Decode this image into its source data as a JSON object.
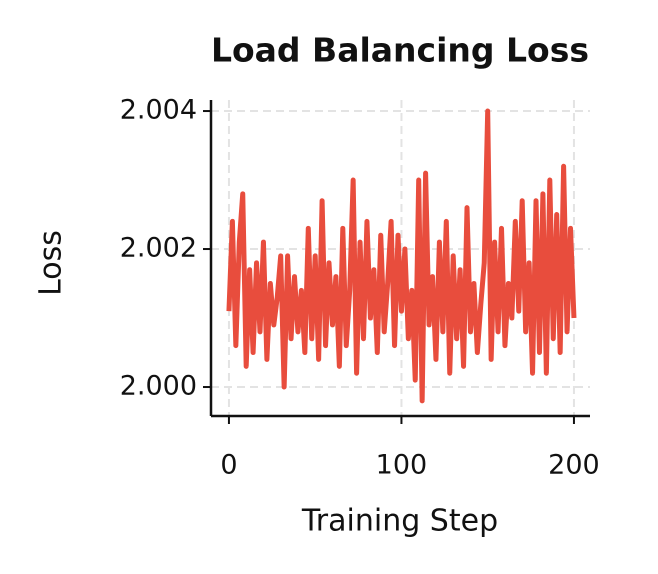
{
  "chart_data": {
    "type": "line",
    "title": "Load Balancing Loss",
    "x_label": "Training Step",
    "y_label": "Loss",
    "x": [
      0,
      2,
      4,
      6,
      8,
      10,
      12,
      14,
      16,
      18,
      20,
      22,
      24,
      26,
      28,
      30,
      32,
      34,
      36,
      38,
      40,
      42,
      44,
      46,
      48,
      50,
      52,
      54,
      56,
      58,
      60,
      62,
      64,
      66,
      68,
      70,
      72,
      74,
      76,
      78,
      80,
      82,
      84,
      86,
      88,
      90,
      92,
      94,
      96,
      98,
      100,
      102,
      104,
      106,
      108,
      110,
      112,
      114,
      116,
      118,
      120,
      122,
      124,
      126,
      128,
      130,
      132,
      134,
      136,
      138,
      140,
      142,
      144,
      146,
      148,
      150,
      152,
      154,
      156,
      158,
      160,
      162,
      164,
      166,
      168,
      170,
      172,
      174,
      176,
      178,
      180,
      182,
      184,
      186,
      188,
      190,
      192,
      194,
      196,
      198,
      200
    ],
    "series": [
      {
        "name": "Loss",
        "color": "#e84d3d",
        "values": [
          2.0011,
          2.0024,
          2.0006,
          2.0021,
          2.0028,
          2.0003,
          2.0017,
          2.0005,
          2.0018,
          2.0008,
          2.0021,
          2.0004,
          2.0015,
          2.0009,
          2.0013,
          2.0019,
          2.0,
          2.0019,
          2.0007,
          2.0016,
          2.0008,
          2.0014,
          2.0005,
          2.0023,
          2.0007,
          2.0019,
          2.0004,
          2.0027,
          2.0006,
          2.0018,
          2.0009,
          2.0016,
          2.0003,
          2.0023,
          2.0006,
          2.0014,
          2.003,
          2.0002,
          2.0021,
          2.0007,
          2.0024,
          2.001,
          2.0017,
          2.0005,
          2.0022,
          2.0008,
          2.0015,
          2.0024,
          2.0006,
          2.0022,
          2.0011,
          2.002,
          2.0007,
          2.0014,
          2.0001,
          2.003,
          1.9998,
          2.0031,
          2.0009,
          2.0016,
          2.0004,
          2.0021,
          2.0008,
          2.0024,
          2.0002,
          2.0019,
          2.0007,
          2.0017,
          2.0003,
          2.0026,
          2.0008,
          2.0015,
          2.0005,
          2.0012,
          2.0018,
          2.004,
          2.0004,
          2.0021,
          2.0008,
          2.0023,
          2.0006,
          2.0015,
          2.001,
          2.0024,
          2.0011,
          2.0027,
          2.0008,
          2.0018,
          2.0002,
          2.0027,
          2.0005,
          2.0028,
          2.0002,
          2.003,
          2.0007,
          2.0025,
          2.0005,
          2.0032,
          2.0008,
          2.0023,
          2.001
        ]
      }
    ],
    "xlim": [
      -10.4,
      209.3
    ],
    "ylim": [
      1.99958,
      2.00416
    ],
    "xticks": [
      0,
      100,
      200
    ],
    "yticks": [
      {
        "value": 2.0,
        "label": "2.000"
      },
      {
        "value": 2.002,
        "label": "2.002"
      },
      {
        "value": 2.004,
        "label": "2.004"
      }
    ],
    "grid": true
  }
}
